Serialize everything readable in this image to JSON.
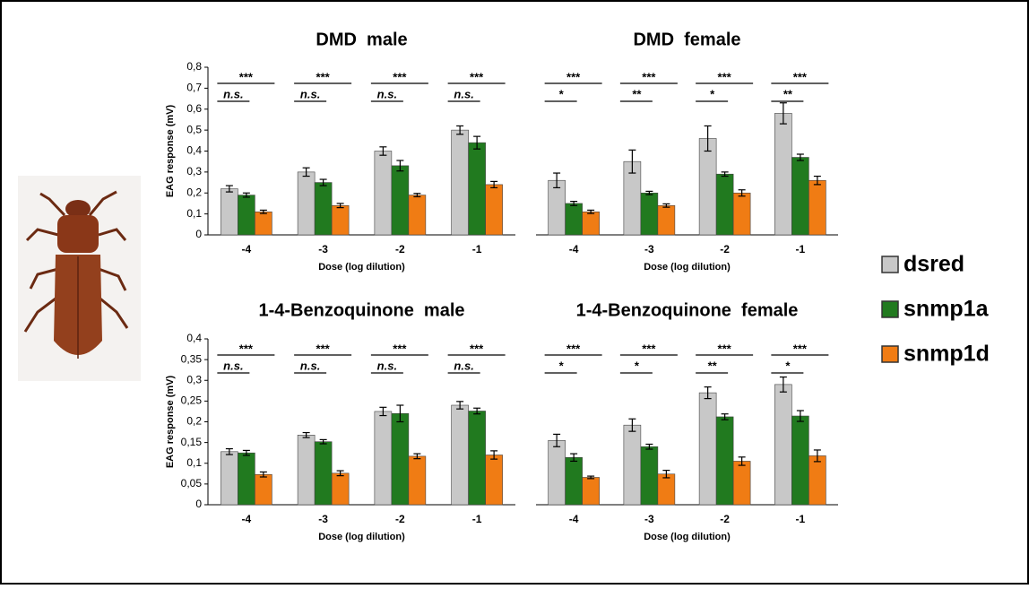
{
  "legend": [
    {
      "name": "dsred",
      "color": "#c8c8c8"
    },
    {
      "name": "snmp1a",
      "color": "#217a1f"
    },
    {
      "name": "snmp1d",
      "color": "#f07c14"
    }
  ],
  "chart_data": [
    {
      "type": "bar",
      "title": "DMD  male",
      "x_label": "Dose (log dilution)",
      "y_label": "EAG response (mV)",
      "categories": [
        "-4",
        "-3",
        "-2",
        "-1"
      ],
      "ylim": [
        0,
        0.8
      ],
      "yticks": [
        0,
        {
          "value": 0.1,
          "label": "0,1"
        },
        {
          "value": 0.2,
          "label": "0,2"
        },
        {
          "value": 0.3,
          "label": "0,3"
        },
        {
          "value": 0.4,
          "label": "0,4"
        },
        {
          "value": 0.5,
          "label": "0,5"
        },
        {
          "value": 0.6,
          "label": "0,6"
        },
        {
          "value": 0.7,
          "label": "0,7"
        },
        {
          "value": 0.8,
          "label": "0,8"
        }
      ],
      "series": [
        {
          "values": [
            0.22,
            0.3,
            0.4,
            0.5
          ],
          "errors": [
            0.015,
            0.02,
            0.02,
            0.02
          ]
        },
        {
          "values": [
            0.19,
            0.25,
            0.33,
            0.44
          ],
          "errors": [
            0.01,
            0.015,
            0.025,
            0.03
          ]
        },
        {
          "values": [
            0.11,
            0.14,
            0.19,
            0.24
          ],
          "errors": [
            0.008,
            0.01,
            0.008,
            0.015
          ]
        }
      ],
      "annotations": {
        "upper": [
          "***",
          "***",
          "***",
          "***"
        ],
        "lower": [
          "n.s.",
          "n.s.",
          "n.s.",
          "n.s."
        ]
      }
    },
    {
      "type": "bar",
      "title": "DMD  female",
      "x_label": "Dose (log dilution)",
      "categories": [
        "-4",
        "-3",
        "-2",
        "-1"
      ],
      "ylim": [
        0,
        0.8
      ],
      "series": [
        {
          "values": [
            0.26,
            0.35,
            0.46,
            0.58
          ],
          "errors": [
            0.035,
            0.055,
            0.06,
            0.05
          ]
        },
        {
          "values": [
            0.15,
            0.2,
            0.29,
            0.37
          ],
          "errors": [
            0.01,
            0.008,
            0.01,
            0.015
          ]
        },
        {
          "values": [
            0.11,
            0.14,
            0.2,
            0.26
          ],
          "errors": [
            0.008,
            0.008,
            0.015,
            0.02
          ]
        }
      ],
      "annotations": {
        "upper": [
          "***",
          "***",
          "***",
          "***"
        ],
        "lower": [
          "*",
          "**",
          "*",
          "**"
        ]
      }
    },
    {
      "type": "bar",
      "title": "1-4-Benzoquinone  male",
      "x_label": "Dose (log dilution)",
      "y_label": "EAG response (mV)",
      "categories": [
        "-4",
        "-3",
        "-2",
        "-1"
      ],
      "ylim": [
        0,
        0.4
      ],
      "yticks": [
        0,
        {
          "value": 0.05,
          "label": "0,05"
        },
        {
          "value": 0.1,
          "label": "0,1"
        },
        {
          "value": 0.15,
          "label": "0,15"
        },
        {
          "value": 0.2,
          "label": "0,2"
        },
        {
          "value": 0.25,
          "label": "0,25"
        },
        {
          "value": 0.3,
          "label": "0,3"
        },
        {
          "value": 0.35,
          "label": "0,35"
        },
        {
          "value": 0.4,
          "label": "0,4"
        }
      ],
      "series": [
        {
          "values": [
            0.128,
            0.168,
            0.225,
            0.24
          ],
          "errors": [
            0.007,
            0.006,
            0.01,
            0.009
          ]
        },
        {
          "values": [
            0.125,
            0.152,
            0.22,
            0.226
          ],
          "errors": [
            0.006,
            0.005,
            0.02,
            0.007
          ]
        },
        {
          "values": [
            0.073,
            0.076,
            0.117,
            0.12
          ],
          "errors": [
            0.006,
            0.006,
            0.006,
            0.01
          ]
        }
      ],
      "annotations": {
        "upper": [
          "***",
          "***",
          "***",
          "***"
        ],
        "lower": [
          "n.s.",
          "n.s.",
          "n.s.",
          "n.s."
        ]
      }
    },
    {
      "type": "bar",
      "title": "1-4-Benzoquinone  female",
      "x_label": "Dose (log dilution)",
      "categories": [
        "-4",
        "-3",
        "-2",
        "-1"
      ],
      "ylim": [
        0,
        0.4
      ],
      "series": [
        {
          "values": [
            0.155,
            0.192,
            0.27,
            0.29
          ],
          "errors": [
            0.015,
            0.015,
            0.014,
            0.018
          ]
        },
        {
          "values": [
            0.114,
            0.14,
            0.212,
            0.214
          ],
          "errors": [
            0.009,
            0.006,
            0.007,
            0.013
          ]
        },
        {
          "values": [
            0.066,
            0.074,
            0.105,
            0.118
          ],
          "errors": [
            0.003,
            0.009,
            0.01,
            0.014
          ]
        }
      ],
      "annotations": {
        "upper": [
          "***",
          "***",
          "***",
          "***"
        ],
        "lower": [
          "*",
          "*",
          "**",
          "*"
        ]
      }
    }
  ]
}
